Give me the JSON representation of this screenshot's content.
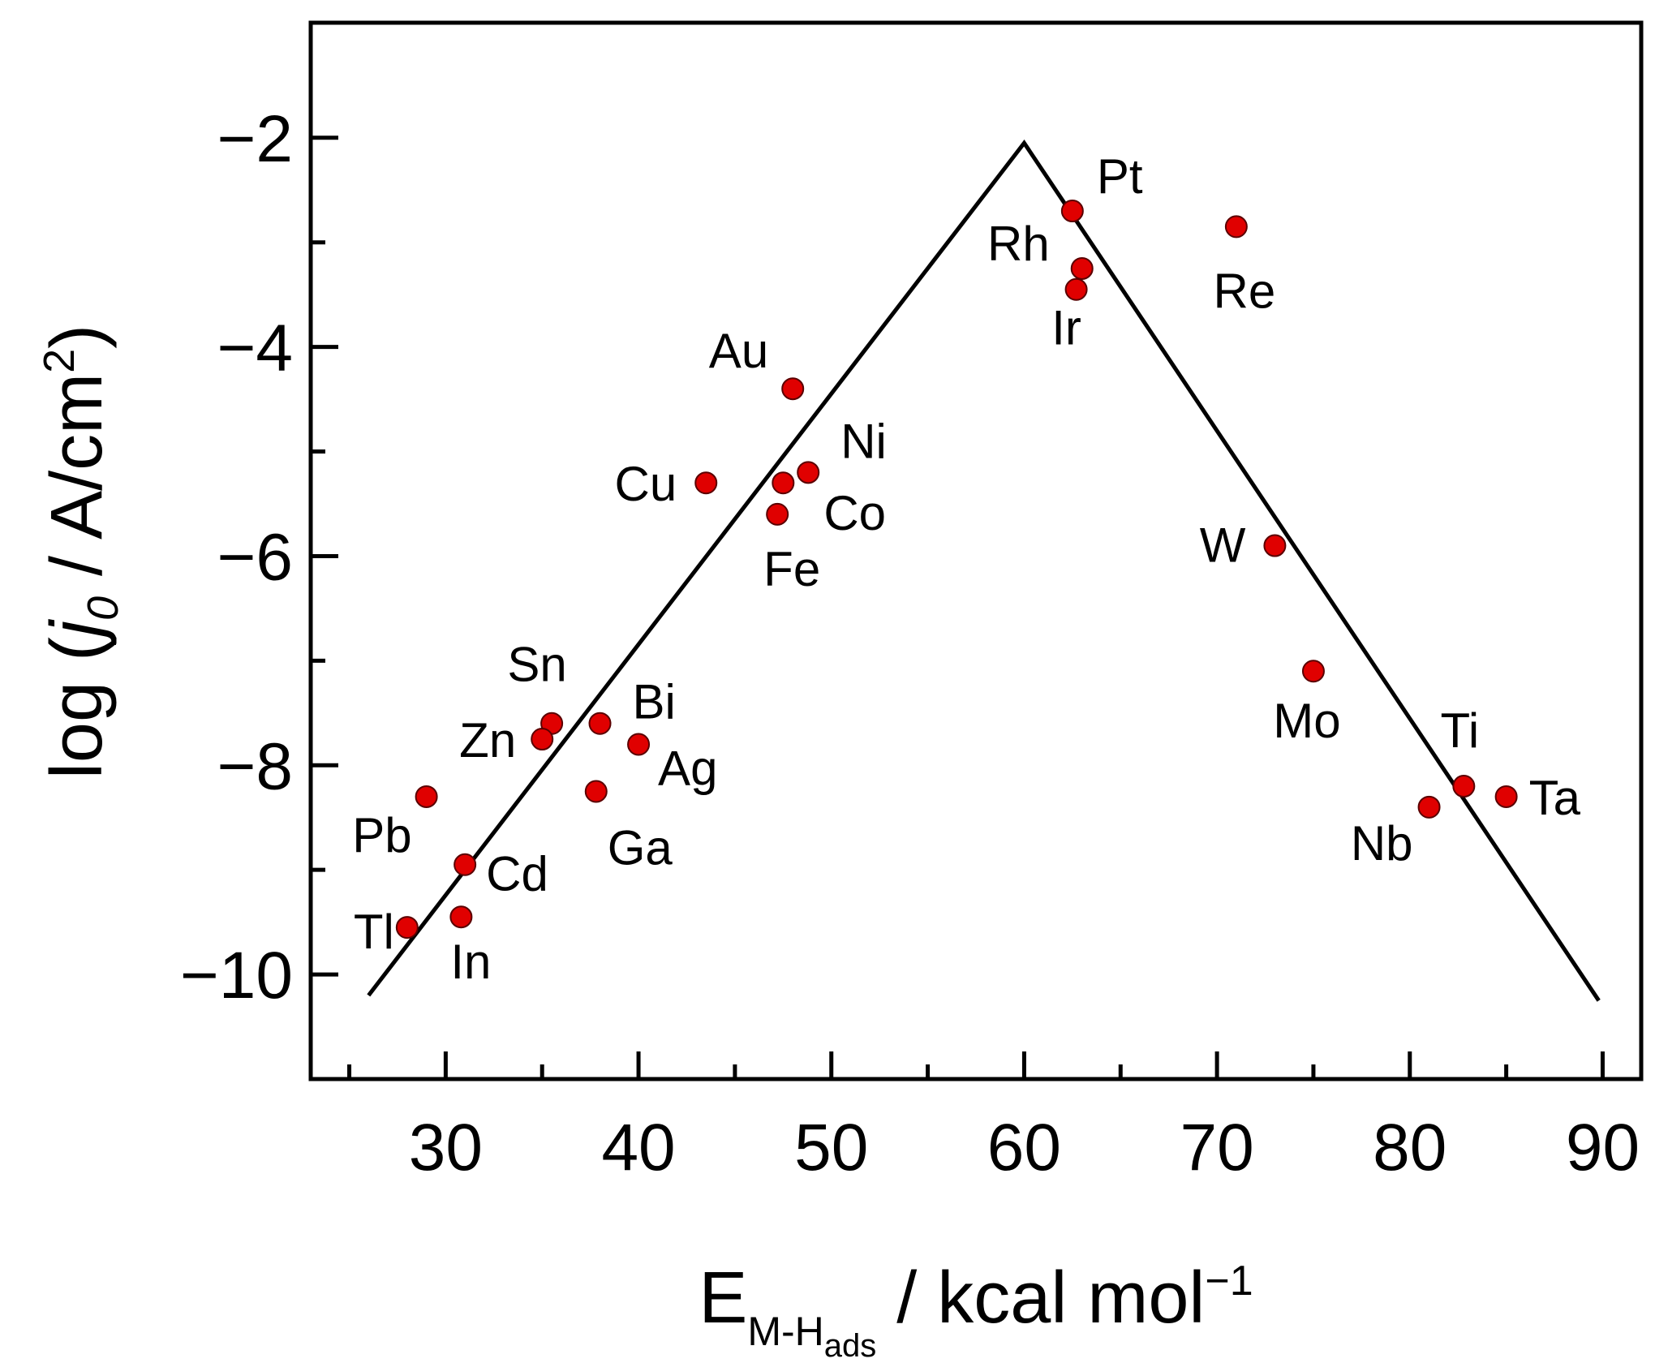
{
  "chart_data": {
    "type": "scatter",
    "title": "",
    "xlabel": {
      "main": "E",
      "sub": "M-H",
      "subsub": "ads",
      "unit": " / kcal mol",
      "unit_sup": "−1"
    },
    "ylabel": {
      "prefix": "log (",
      "italic": "j",
      "italic_sub": "0",
      "suffix": " / A/cm",
      "sup": "2",
      "close": ")"
    },
    "xlim": [
      23,
      92
    ],
    "ylim": [
      -11,
      -0.9
    ],
    "xticks": [
      30,
      40,
      50,
      60,
      70,
      80,
      90
    ],
    "xtick_labels": [
      "30",
      "40",
      "50",
      "60",
      "70",
      "80",
      "90"
    ],
    "xticks_minor": [
      25,
      35,
      45,
      55,
      65,
      75,
      85
    ],
    "yticks": [
      -2,
      -4,
      -6,
      -8,
      -10
    ],
    "ytick_labels": [
      "−2",
      "−4",
      "−6",
      "−8",
      "−10"
    ],
    "yticks_minor": [
      -3,
      -5,
      -7,
      -9
    ],
    "marker_color": "#e00000",
    "line_color": "#000000",
    "trend_line": {
      "x": [
        26.0,
        60.0,
        89.8
      ],
      "y": [
        -10.2,
        -2.05,
        -10.25
      ]
    },
    "series": [
      {
        "points": [
          {
            "label": "Pt",
            "x": 62.5,
            "y": -2.7
          },
          {
            "label": "Rh",
            "x": 63.0,
            "y": -3.25
          },
          {
            "label": "Ir",
            "x": 62.7,
            "y": -3.45
          },
          {
            "label": "Re",
            "x": 71.0,
            "y": -2.85
          },
          {
            "label": "Au",
            "x": 48.0,
            "y": -4.4
          },
          {
            "label": "Ni",
            "x": 48.8,
            "y": -5.2
          },
          {
            "label": "Cu",
            "x": 43.5,
            "y": -5.3
          },
          {
            "label": "Co",
            "x": 47.5,
            "y": -5.3
          },
          {
            "label": "Fe",
            "x": 47.2,
            "y": -5.6
          },
          {
            "label": "W",
            "x": 73.0,
            "y": -5.9
          },
          {
            "label": "Mo",
            "x": 75.0,
            "y": -7.1
          },
          {
            "label": "Sn",
            "x": 35.5,
            "y": -7.6
          },
          {
            "label": "Bi",
            "x": 38.0,
            "y": -7.6
          },
          {
            "label": "Zn",
            "x": 35.0,
            "y": -7.75
          },
          {
            "label": "Ag",
            "x": 40.0,
            "y": -7.8
          },
          {
            "label": "Ga",
            "x": 37.8,
            "y": -8.25
          },
          {
            "label": "Pb",
            "x": 29.0,
            "y": -8.3
          },
          {
            "label": "Cd",
            "x": 31.0,
            "y": -8.95
          },
          {
            "label": "Tl",
            "x": 28.0,
            "y": -9.55
          },
          {
            "label": "In",
            "x": 30.8,
            "y": -9.45
          },
          {
            "label": "Ti",
            "x": 82.8,
            "y": -8.2
          },
          {
            "label": "Ta",
            "x": 85.0,
            "y": -8.3
          },
          {
            "label": "Nb",
            "x": 81.0,
            "y": -8.4
          }
        ]
      }
    ]
  }
}
